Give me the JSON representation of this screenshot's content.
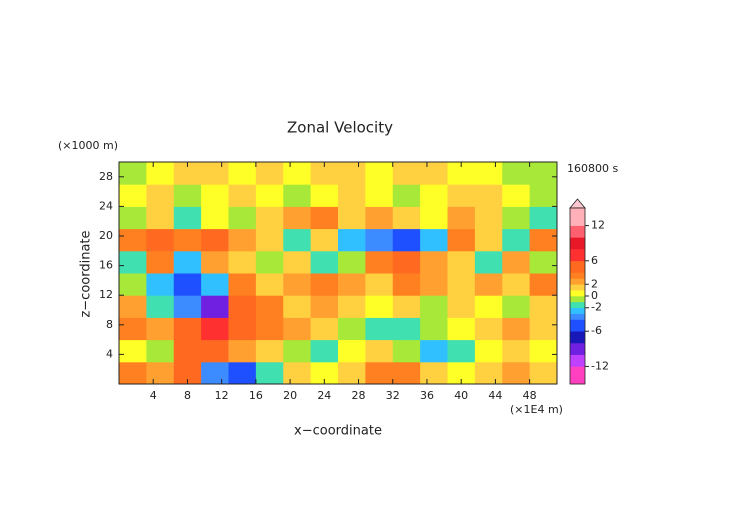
{
  "chart_data": {
    "type": "heatmap",
    "title": "Zonal Velocity",
    "x_label": "x−coordinate",
    "y_label": "z−coordinate",
    "x_unit": "(×1E4 m)",
    "y_unit": "(×1000 m)",
    "time_label": "160800 s",
    "x": [
      1.6,
      4.8,
      8,
      11.2,
      14.4,
      17.6,
      20.8,
      24,
      27.2,
      30.4,
      33.6,
      36.8,
      40,
      43.2,
      46.4,
      49.6
    ],
    "y": [
      1.5,
      4.5,
      7.5,
      10.5,
      13.5,
      16.5,
      19.5,
      22.5,
      25.5,
      28.5
    ],
    "z": [
      [
        3,
        2,
        4,
        -4,
        -5,
        -2,
        1,
        0,
        1,
        3,
        3,
        1,
        0,
        1,
        2,
        1
      ],
      [
        0,
        -1,
        4,
        5,
        2,
        1,
        -1,
        -2,
        0,
        1,
        -1,
        -3,
        -2,
        0,
        1,
        0
      ],
      [
        3,
        2,
        4,
        6,
        4,
        3,
        2,
        1,
        -1,
        -2,
        -2,
        -1,
        0,
        1,
        2,
        1
      ],
      [
        2,
        -2,
        -4,
        -9,
        4,
        3,
        1,
        2,
        1,
        0,
        1,
        -1,
        1,
        0,
        -1,
        1
      ],
      [
        -1,
        -3,
        -5,
        -3,
        3,
        1,
        2,
        3,
        2,
        1,
        3,
        2,
        1,
        2,
        1,
        3
      ],
      [
        -2,
        3,
        -3,
        2,
        1,
        -1,
        1,
        -2,
        -1,
        3,
        4,
        2,
        1,
        -2,
        2,
        -1
      ],
      [
        3,
        4,
        3,
        4,
        2,
        1,
        -2,
        1,
        -3,
        -4,
        -5,
        -3,
        3,
        1,
        -2,
        3
      ],
      [
        -1,
        1,
        -2,
        0,
        -1,
        1,
        2,
        3,
        1,
        2,
        1,
        0,
        2,
        1,
        -1,
        -2
      ],
      [
        0,
        1,
        -1,
        0,
        1,
        0,
        -1,
        0,
        1,
        0,
        -1,
        0,
        1,
        1,
        0,
        -1
      ],
      [
        -1,
        0,
        1,
        1,
        0,
        1,
        0,
        1,
        1,
        0,
        1,
        1,
        0,
        0,
        -1,
        -1
      ]
    ],
    "xlim": [
      0,
      51.2
    ],
    "ylim": [
      0,
      30
    ],
    "xticks": [
      4,
      8,
      12,
      16,
      20,
      24,
      28,
      32,
      36,
      40,
      44,
      48
    ],
    "yticks": [
      4,
      8,
      12,
      16,
      20,
      24,
      28
    ],
    "colorbar": {
      "lim": [
        -15,
        15
      ],
      "ticks": [
        12,
        6,
        2,
        0,
        -2,
        -6,
        -12
      ],
      "levels": [
        -15,
        -12,
        -10,
        -8,
        -6,
        -4,
        -3,
        -2,
        -1,
        0,
        1,
        2,
        3,
        4,
        6,
        8,
        10,
        12,
        15
      ],
      "colors": [
        "#ff40c0",
        "#c040ff",
        "#7020e0",
        "#1818b8",
        "#1e50ff",
        "#3c8cff",
        "#30c0ff",
        "#40e0b0",
        "#a8e838",
        "#ffff28",
        "#ffd040",
        "#ffa030",
        "#ff8020",
        "#ff6a20",
        "#ff3030",
        "#e81828",
        "#ff6070",
        "#ffb0b8"
      ]
    }
  }
}
